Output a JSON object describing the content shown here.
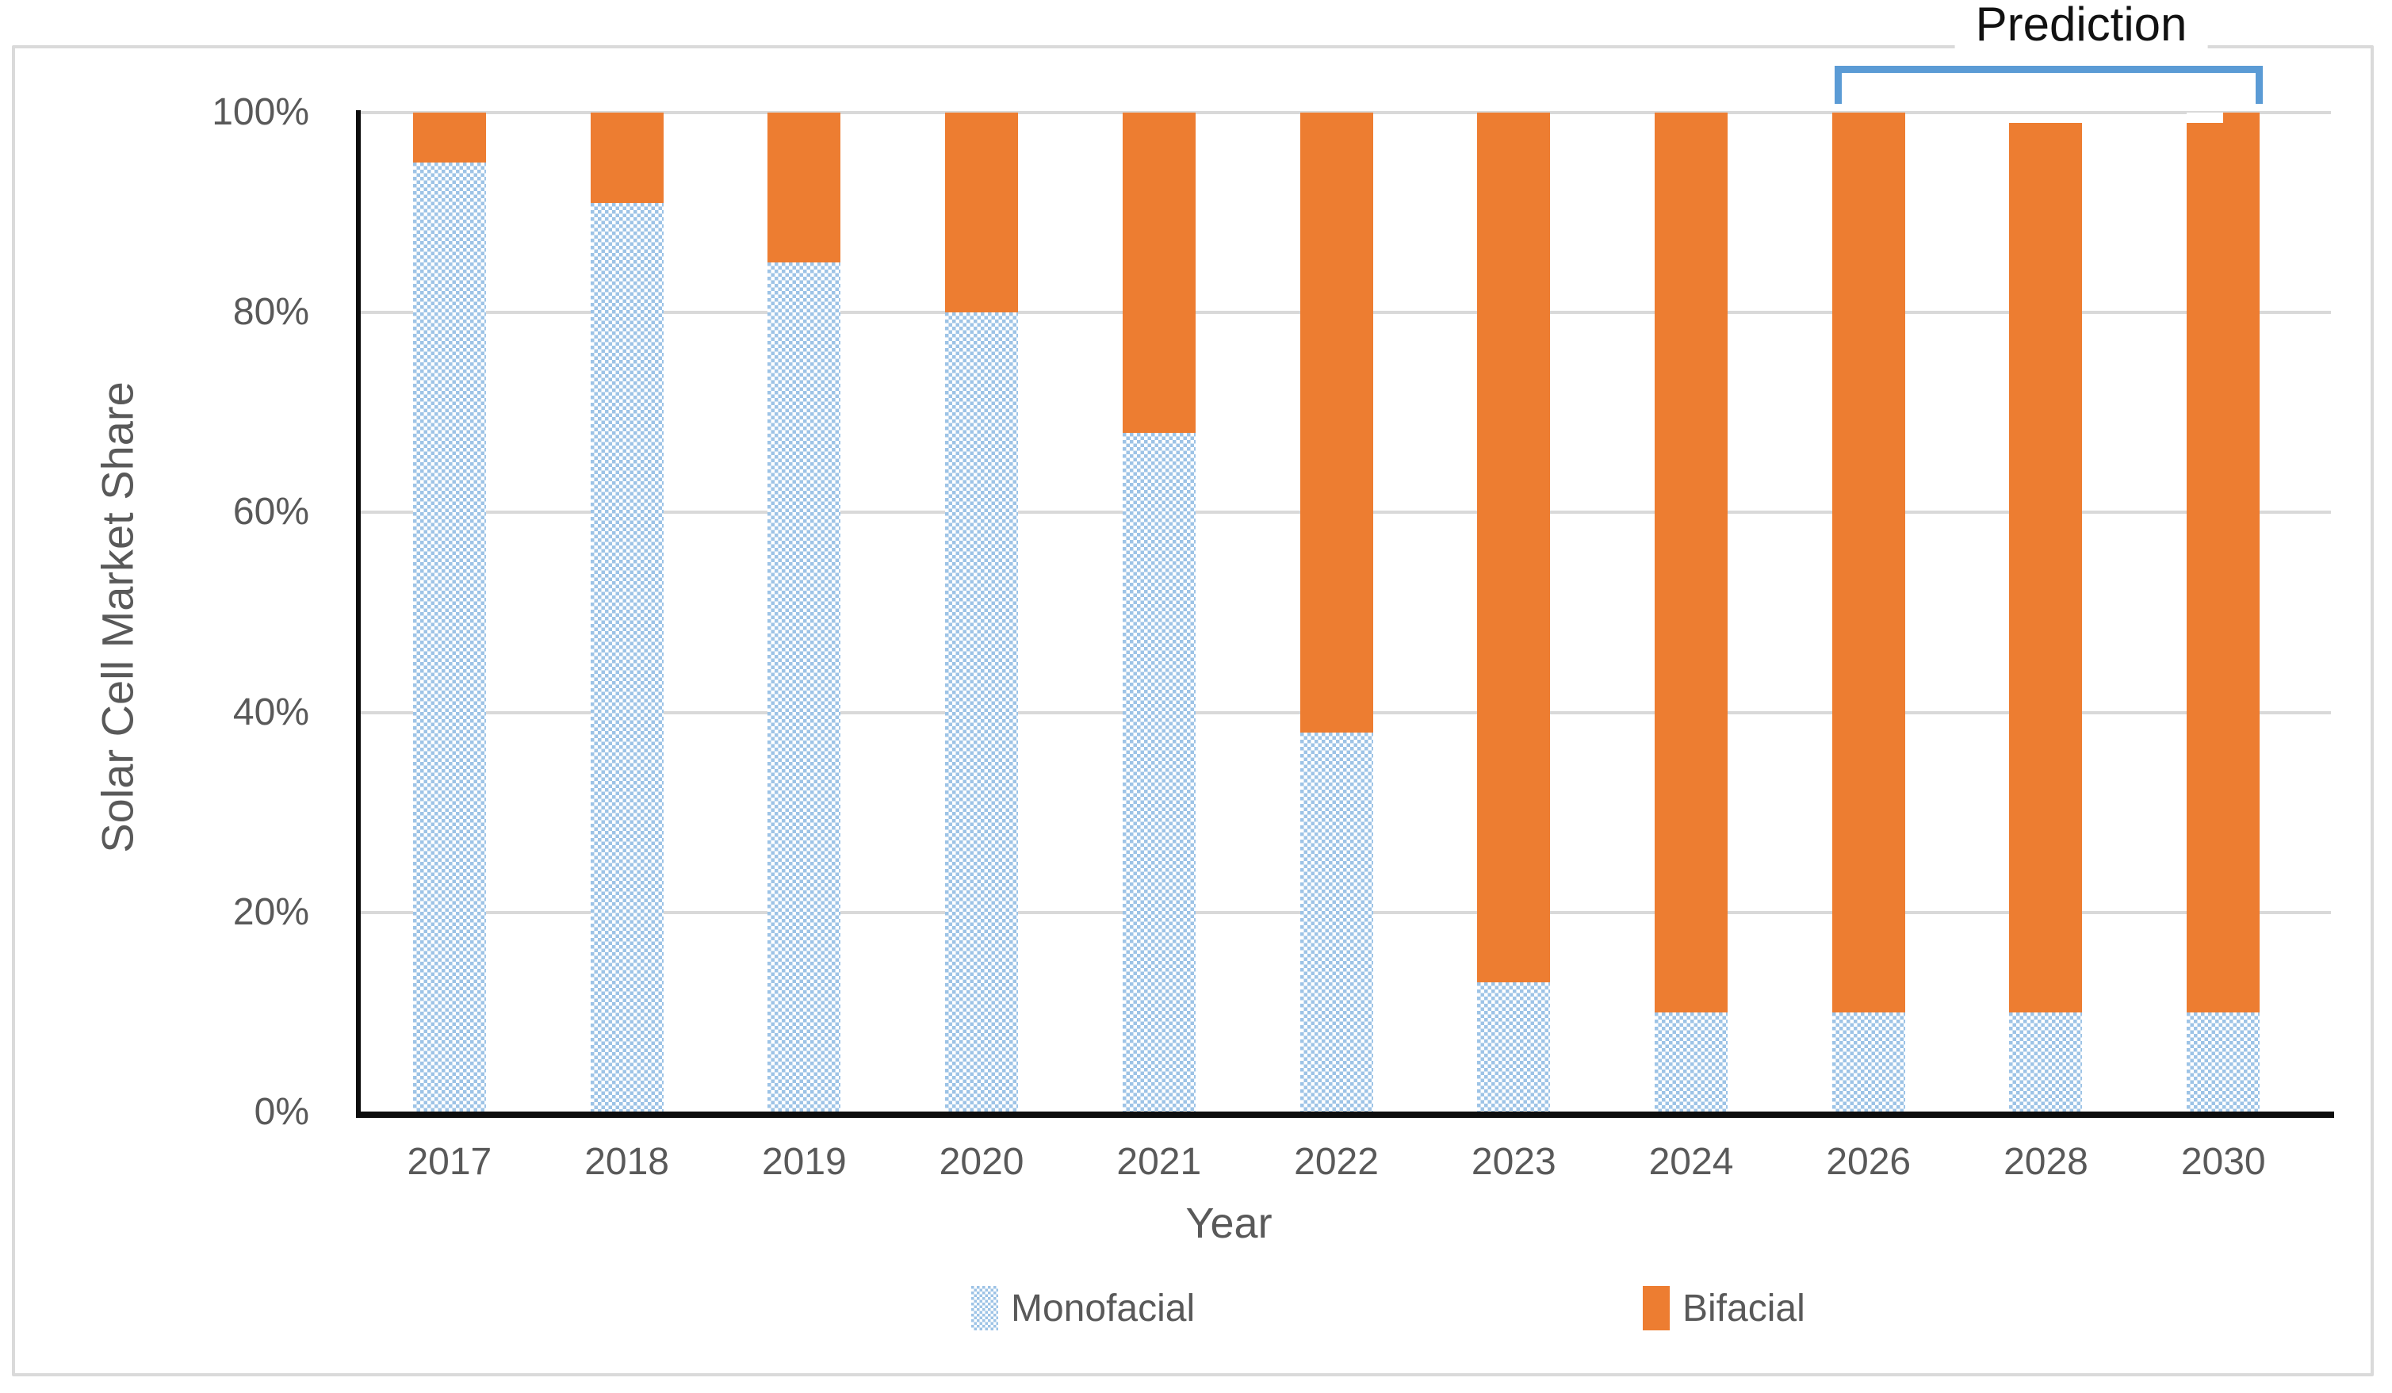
{
  "chart_data": {
    "type": "bar",
    "stacked": true,
    "xlabel": "Year",
    "ylabel": "Solar Cell Market Share",
    "categories": [
      "2017",
      "2018",
      "2019",
      "2020",
      "2021",
      "2022",
      "2023",
      "2024",
      "2026",
      "2028",
      "2030"
    ],
    "series": [
      {
        "name": "Monofacial",
        "values": [
          95,
          91,
          85,
          80,
          68,
          38,
          13,
          10,
          10,
          10,
          10
        ],
        "fill": "white-dot-lattice-pattern",
        "color": "#9dc3e6"
      },
      {
        "name": "Bifacial",
        "values": [
          5,
          9,
          15,
          20,
          32,
          62,
          87,
          90,
          90,
          89,
          90
        ],
        "fill": "solid",
        "color": "#ed7d31"
      }
    ],
    "ylim": [
      0,
      100
    ],
    "yticks": [
      "0%",
      "20%",
      "40%",
      "60%",
      "80%",
      "100%"
    ],
    "grid": true,
    "legend_position": "bottom",
    "annotation": {
      "label": "Prediction",
      "bracket_color": "#5b9bd5",
      "covers": [
        "2026",
        "2028",
        "2030"
      ]
    },
    "render_artifacts": {
      "2030_top_notch": {
        "depth_pct": 1,
        "left_width_frac": 0.5
      }
    },
    "colors": {
      "bifacial": "#ed7d31",
      "monofacial_base": "#9dc3e6",
      "gridline": "#d9d9d9",
      "axis_line": "#0d0d0d",
      "tick_text": "#595959",
      "annotation_text": "#111111",
      "bracket": "#5b9bd5"
    }
  }
}
